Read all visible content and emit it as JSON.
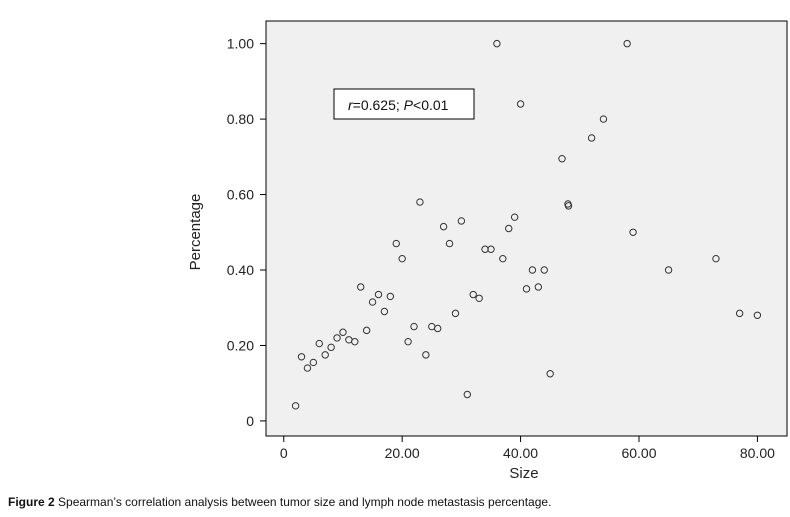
{
  "chart_data": {
    "type": "scatter",
    "xlabel": "Size",
    "ylabel": "Percentage",
    "xlim": [
      -3,
      85
    ],
    "ylim": [
      -0.04,
      1.06
    ],
    "xticks": [
      0,
      20,
      40,
      60,
      80
    ],
    "xtick_labels": [
      "0",
      "20.00",
      "40.00",
      "60.00",
      "80.00"
    ],
    "yticks": [
      0,
      0.2,
      0.4,
      0.6,
      0.8,
      1.0
    ],
    "ytick_labels": [
      "0",
      "0.20",
      "0.40",
      "0.60",
      "0.80",
      "1.00"
    ],
    "annotation": {
      "r_symbol": "r",
      "r_value": "=0.625; ",
      "p_symbol": "P",
      "p_value": "<0.01"
    },
    "points": [
      [
        2,
        0.04
      ],
      [
        3,
        0.17
      ],
      [
        4,
        0.14
      ],
      [
        5,
        0.155
      ],
      [
        6,
        0.205
      ],
      [
        7,
        0.175
      ],
      [
        8,
        0.195
      ],
      [
        9,
        0.22
      ],
      [
        10,
        0.235
      ],
      [
        11,
        0.215
      ],
      [
        12,
        0.21
      ],
      [
        13,
        0.355
      ],
      [
        14,
        0.24
      ],
      [
        15,
        0.315
      ],
      [
        16,
        0.335
      ],
      [
        17,
        0.29
      ],
      [
        18,
        0.33
      ],
      [
        19,
        0.47
      ],
      [
        20,
        0.43
      ],
      [
        21,
        0.21
      ],
      [
        22,
        0.25
      ],
      [
        23,
        0.58
      ],
      [
        24,
        0.175
      ],
      [
        25,
        0.25
      ],
      [
        26,
        0.245
      ],
      [
        27,
        0.515
      ],
      [
        28,
        0.47
      ],
      [
        29,
        0.285
      ],
      [
        30,
        0.53
      ],
      [
        31,
        0.07
      ],
      [
        32,
        0.335
      ],
      [
        33,
        0.325
      ],
      [
        34,
        0.455
      ],
      [
        35,
        0.455
      ],
      [
        36,
        1.0
      ],
      [
        37,
        0.43
      ],
      [
        38,
        0.51
      ],
      [
        39,
        0.54
      ],
      [
        40,
        0.84
      ],
      [
        41,
        0.35
      ],
      [
        42,
        0.4
      ],
      [
        43,
        0.355
      ],
      [
        44,
        0.4
      ],
      [
        45,
        0.125
      ],
      [
        47,
        0.695
      ],
      [
        48,
        0.575
      ],
      [
        48.1,
        0.57
      ],
      [
        52,
        0.75
      ],
      [
        54,
        0.8
      ],
      [
        58,
        1.0
      ],
      [
        59,
        0.5
      ],
      [
        65,
        0.4
      ],
      [
        73,
        0.43
      ],
      [
        77,
        0.285
      ],
      [
        80,
        0.28
      ]
    ]
  },
  "caption": {
    "label": "Figure 2",
    "text": " Spearman’s correlation analysis between tumor size and lymph node metastasis percentage."
  }
}
